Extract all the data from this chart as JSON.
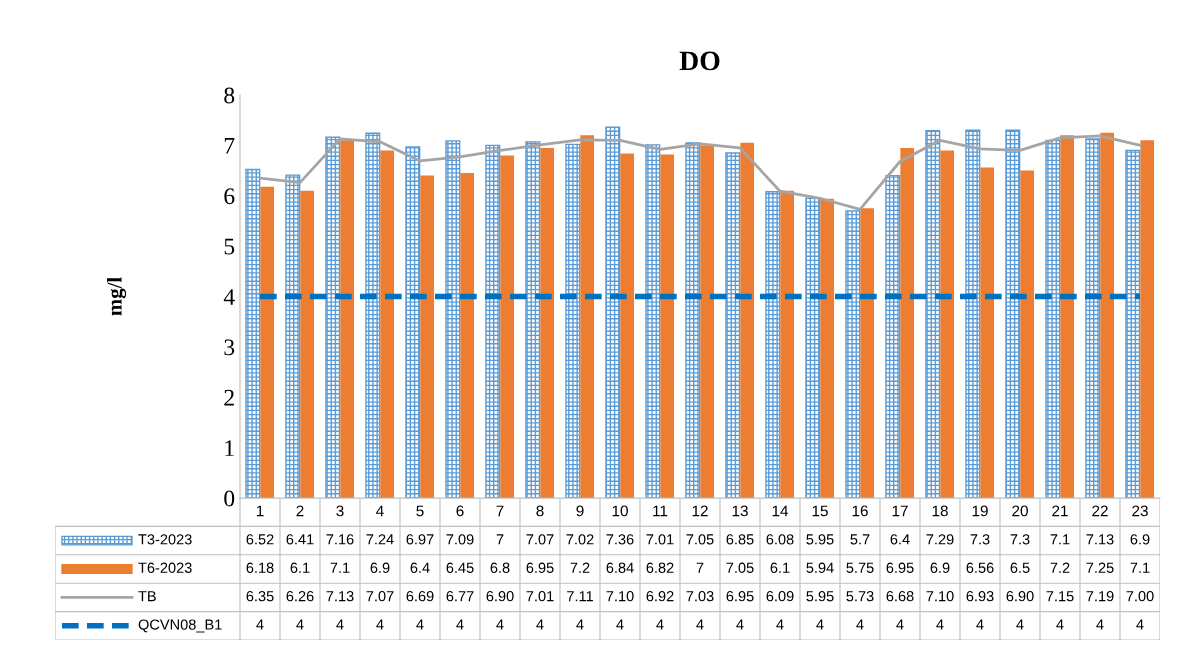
{
  "chart_data": {
    "type": "bar",
    "title": "DO",
    "ylabel": "mg/l",
    "categories": [
      "1",
      "2",
      "3",
      "4",
      "5",
      "6",
      "7",
      "8",
      "9",
      "10",
      "11",
      "12",
      "13",
      "14",
      "15",
      "16",
      "17",
      "18",
      "19",
      "20",
      "21",
      "22",
      "23"
    ],
    "ylim": [
      0,
      8
    ],
    "yticks": [
      0,
      1,
      2,
      3,
      4,
      5,
      6,
      7,
      8
    ],
    "grid": false,
    "legend": "bottom left",
    "data_labels": true,
    "series": [
      {
        "name": "T3-2023",
        "color": "#5b9bd5",
        "values": [
          6.52,
          6.41,
          7.16,
          7.24,
          6.97,
          7.09,
          7,
          7.07,
          7.02,
          7.36,
          7.01,
          7.05,
          6.85,
          6.08,
          5.95,
          5.7,
          6.4,
          7.29,
          7.3,
          7.3,
          7.1,
          7.13,
          6.9
        ],
        "value_labels": [
          "6.52",
          "6.41",
          "7.16",
          "7.24",
          "6.97",
          "7.09",
          "7",
          "7.07",
          "7.02",
          "7.36",
          "7.01",
          "7.05",
          "6.85",
          "6.08",
          "5.95",
          "5.7",
          "6.4",
          "7.29",
          "7.3",
          "7.3",
          "7.1",
          "7.13",
          "6.9"
        ]
      },
      {
        "name": "T6-2023",
        "color": "#ed7d31",
        "values": [
          6.18,
          6.1,
          7.1,
          6.9,
          6.4,
          6.45,
          6.8,
          6.95,
          7.2,
          6.84,
          6.82,
          7,
          7.05,
          6.1,
          5.94,
          5.75,
          6.95,
          6.9,
          6.56,
          6.5,
          7.2,
          7.25,
          7.1
        ],
        "value_labels": [
          "6.18",
          "6.1",
          "7.1",
          "6.9",
          "6.4",
          "6.45",
          "6.8",
          "6.95",
          "7.2",
          "6.84",
          "6.82",
          "7",
          "7.05",
          "6.1",
          "5.94",
          "5.75",
          "6.95",
          "6.9",
          "6.56",
          "6.5",
          "7.2",
          "7.25",
          "7.1"
        ]
      },
      {
        "name": "TB",
        "type": "line",
        "color": "#a5a5a5",
        "line_style": "solid",
        "values": [
          6.35,
          6.26,
          7.13,
          7.07,
          6.69,
          6.77,
          6.9,
          7.01,
          7.11,
          7.1,
          6.92,
          7.03,
          6.95,
          6.09,
          5.95,
          5.73,
          6.68,
          7.1,
          6.93,
          6.9,
          7.15,
          7.19,
          7.0
        ],
        "value_labels": [
          "6.35",
          "6.26",
          "7.13",
          "7.07",
          "6.69",
          "6.77",
          "6.90",
          "7.01",
          "7.11",
          "7.10",
          "6.92",
          "7.03",
          "6.95",
          "6.09",
          "5.95",
          "5.73",
          "6.68",
          "7.10",
          "6.93",
          "6.90",
          "7.15",
          "7.19",
          "7.00"
        ]
      },
      {
        "name": "QCVN08_B1",
        "type": "line",
        "color": "#0070c0",
        "line_style": "dashed",
        "values": [
          4,
          4,
          4,
          4,
          4,
          4,
          4,
          4,
          4,
          4,
          4,
          4,
          4,
          4,
          4,
          4,
          4,
          4,
          4,
          4,
          4,
          4,
          4
        ],
        "value_labels": [
          "4",
          "4",
          "4",
          "4",
          "4",
          "4",
          "4",
          "4",
          "4",
          "4",
          "4",
          "4",
          "4",
          "4",
          "4",
          "4",
          "4",
          "4",
          "4",
          "4",
          "4",
          "4",
          "4"
        ]
      }
    ]
  }
}
